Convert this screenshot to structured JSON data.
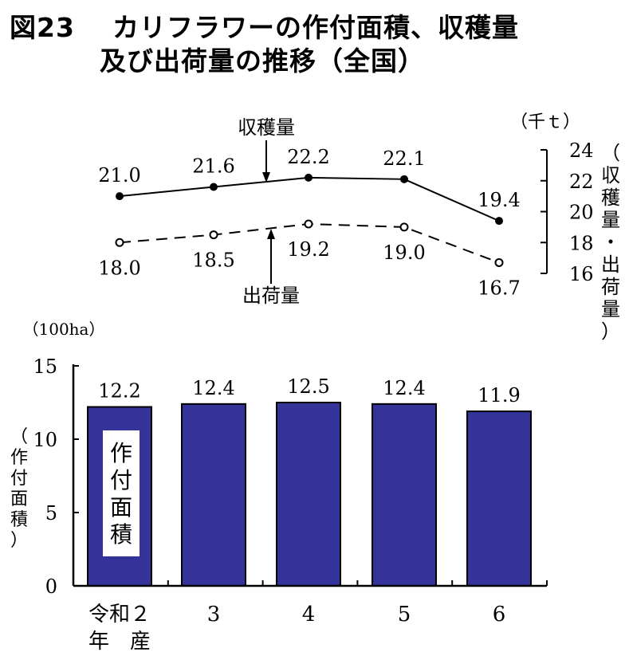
{
  "title": {
    "number": "図23",
    "line1": "カリフラワーの作付面積、収穫量",
    "line2": "及び出荷量の推移（全国）"
  },
  "chart_data": [
    {
      "type": "line",
      "categories": [
        "令和２年産",
        "3",
        "4",
        "5",
        "6"
      ],
      "unit": "（千ｔ）",
      "ylabel": "（収穫量・出荷量）",
      "ylim": [
        16,
        24
      ],
      "yticks": [
        "16",
        "18",
        "20",
        "22",
        "24"
      ],
      "series": [
        {
          "name": "収穫量",
          "values": [
            21.0,
            21.6,
            22.2,
            22.1,
            19.4
          ],
          "labels": [
            "21.0",
            "21.6",
            "22.2",
            "22.1",
            "19.4"
          ],
          "style": "solid-filled-markers"
        },
        {
          "name": "出荷量",
          "values": [
            18.0,
            18.5,
            19.2,
            19.0,
            16.7
          ],
          "labels": [
            "18.0",
            "18.5",
            "19.2",
            "19.0",
            "16.7"
          ],
          "style": "dashed-open-markers"
        }
      ]
    },
    {
      "type": "bar",
      "categories": [
        "令和２年産",
        "3",
        "4",
        "5",
        "6"
      ],
      "category_labels": [
        "令和２",
        "3",
        "4",
        "5",
        "6"
      ],
      "category_sublabel": "年　産",
      "unit": "（100ha）",
      "ylabel": "（作付面積）",
      "series_label": "作付面積",
      "ylim": [
        0,
        15
      ],
      "yticks": [
        "0",
        "5",
        "10",
        "15"
      ],
      "values": [
        12.2,
        12.4,
        12.5,
        12.4,
        11.9
      ],
      "labels": [
        "12.2",
        "12.4",
        "12.5",
        "12.4",
        "11.9"
      ],
      "bar_color": "#333399"
    }
  ]
}
